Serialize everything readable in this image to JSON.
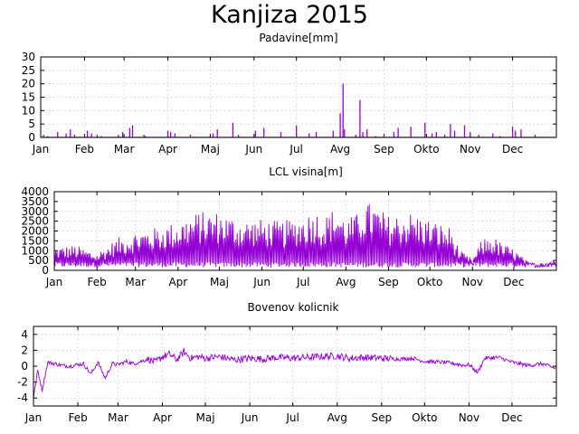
{
  "colors": {
    "series": "#9400d3",
    "grid": "#c8c8c8",
    "frame": "#000000"
  },
  "chart_data": [
    {
      "type": "bar",
      "figure_title": "Kanjiza 2015",
      "title": "Padavine[mm]",
      "xlabel": "",
      "ylabel": "",
      "x_range": [
        0,
        365
      ],
      "ylim": [
        0,
        30
      ],
      "yticks": [
        0,
        5,
        10,
        15,
        20,
        25,
        30
      ],
      "grid": true,
      "month_labels": [
        "Jan",
        "Feb",
        "Mar",
        "Apr",
        "Maj",
        "Jun",
        "Jul",
        "Avg",
        "Sep",
        "Okto",
        "Nov",
        "Dec"
      ],
      "month_start_day": [
        0,
        31,
        59,
        90,
        120,
        151,
        181,
        212,
        243,
        273,
        304,
        334
      ],
      "series": [
        {
          "x": [
            2,
            5,
            12,
            18,
            21,
            24,
            33,
            36,
            40,
            43,
            55,
            58,
            63,
            65,
            73,
            74,
            90,
            92,
            95,
            106,
            122,
            125,
            136,
            140,
            152,
            158,
            170,
            181,
            190,
            195,
            207,
            212,
            214,
            215,
            223,
            226,
            228,
            231,
            237,
            243,
            250,
            253,
            262,
            272,
            277,
            280,
            286,
            290,
            293,
            300,
            304,
            310,
            320,
            325,
            334,
            336,
            340,
            350
          ],
          "values": [
            1.0,
            0.5,
            2.0,
            1.5,
            3.0,
            1.0,
            2.5,
            1.5,
            1.0,
            0.5,
            1.0,
            2.0,
            3.5,
            4.5,
            1.0,
            0.5,
            2.5,
            2.0,
            1.5,
            1.0,
            1.5,
            3.0,
            5.5,
            1.0,
            2.5,
            3.5,
            2.0,
            4.5,
            1.5,
            2.0,
            2.5,
            9.0,
            20.0,
            3.0,
            1.0,
            14.0,
            2.0,
            3.0,
            0.5,
            1.0,
            2.0,
            3.5,
            4.0,
            5.5,
            1.5,
            2.0,
            1.0,
            5.0,
            2.5,
            4.5,
            2.0,
            1.0,
            1.5,
            0.5,
            4.0,
            2.5,
            3.0,
            1.0
          ]
        }
      ]
    },
    {
      "type": "line",
      "title": "LCL visina[m]",
      "xlabel": "",
      "ylabel": "",
      "x_range": [
        0,
        365
      ],
      "ylim": [
        0,
        4000
      ],
      "yticks": [
        0,
        500,
        1000,
        1500,
        2000,
        2500,
        3000,
        3500,
        4000
      ],
      "grid": true,
      "month_labels": [
        "Jan",
        "Feb",
        "Mar",
        "Apr",
        "Maj",
        "Jun",
        "Jul",
        "Avg",
        "Sep",
        "Okto",
        "Nov",
        "Dec"
      ],
      "month_start_day": [
        0,
        31,
        59,
        90,
        120,
        151,
        181,
        212,
        243,
        273,
        304,
        334
      ],
      "daily_max_envelope": {
        "day": [
          0,
          15,
          31,
          45,
          59,
          75,
          90,
          105,
          120,
          135,
          151,
          166,
          181,
          190,
          196,
          205,
          212,
          220,
          225,
          232,
          243,
          258,
          273,
          288,
          295,
          304,
          311,
          318,
          325,
          334,
          345,
          355,
          365
        ],
        "max": [
          1200,
          1300,
          900,
          1600,
          2000,
          2200,
          2500,
          3000,
          3000,
          2600,
          2600,
          2500,
          2800,
          3100,
          2700,
          3300,
          2600,
          2900,
          3500,
          3400,
          2800,
          3000,
          2600,
          2200,
          1000,
          600,
          1600,
          1800,
          1400,
          1100,
          400,
          300,
          700
        ]
      },
      "series": [
        {
          "name": "",
          "note": "hourly values oscillate between ~150 m and the daily maximum envelope"
        }
      ]
    },
    {
      "type": "line",
      "title": "Bovenov kolicnik",
      "xlabel": "",
      "ylabel": "",
      "x_range": [
        0,
        365
      ],
      "ylim": [
        -5,
        5
      ],
      "yticks": [
        -4,
        -2,
        0,
        2,
        4
      ],
      "grid": true,
      "month_labels": [
        "Jan",
        "Feb",
        "Mar",
        "Apr",
        "Maj",
        "Jun",
        "Jul",
        "Avg",
        "Sep",
        "Okto",
        "Nov",
        "Dec"
      ],
      "month_start_day": [
        0,
        31,
        59,
        90,
        120,
        151,
        181,
        212,
        243,
        273,
        304,
        334
      ],
      "series": [
        {
          "name": "",
          "x": [
            0,
            3,
            6,
            10,
            15,
            20,
            25,
            31,
            35,
            40,
            45,
            50,
            55,
            59,
            65,
            70,
            75,
            80,
            85,
            90,
            95,
            100,
            105,
            110,
            115,
            120,
            130,
            140,
            151,
            160,
            170,
            181,
            190,
            200,
            212,
            220,
            230,
            243,
            255,
            265,
            273,
            285,
            295,
            300,
            304,
            310,
            315,
            325,
            334,
            345,
            355,
            365
          ],
          "y": [
            -4.0,
            -0.5,
            -3.0,
            0.5,
            0.3,
            0.1,
            0.0,
            0.2,
            0.3,
            -1.0,
            0.5,
            -1.5,
            0.3,
            0.2,
            0.6,
            0.3,
            0.6,
            0.9,
            0.5,
            1.2,
            1.5,
            0.8,
            1.8,
            1.0,
            1.2,
            1.0,
            1.2,
            0.8,
            1.0,
            0.9,
            1.1,
            1.0,
            1.1,
            1.2,
            1.3,
            1.0,
            1.1,
            1.0,
            0.9,
            1.0,
            0.6,
            0.5,
            0.3,
            0.1,
            0.2,
            -0.8,
            1.0,
            1.1,
            0.5,
            0.1,
            0.3,
            -0.3
          ]
        }
      ]
    }
  ]
}
